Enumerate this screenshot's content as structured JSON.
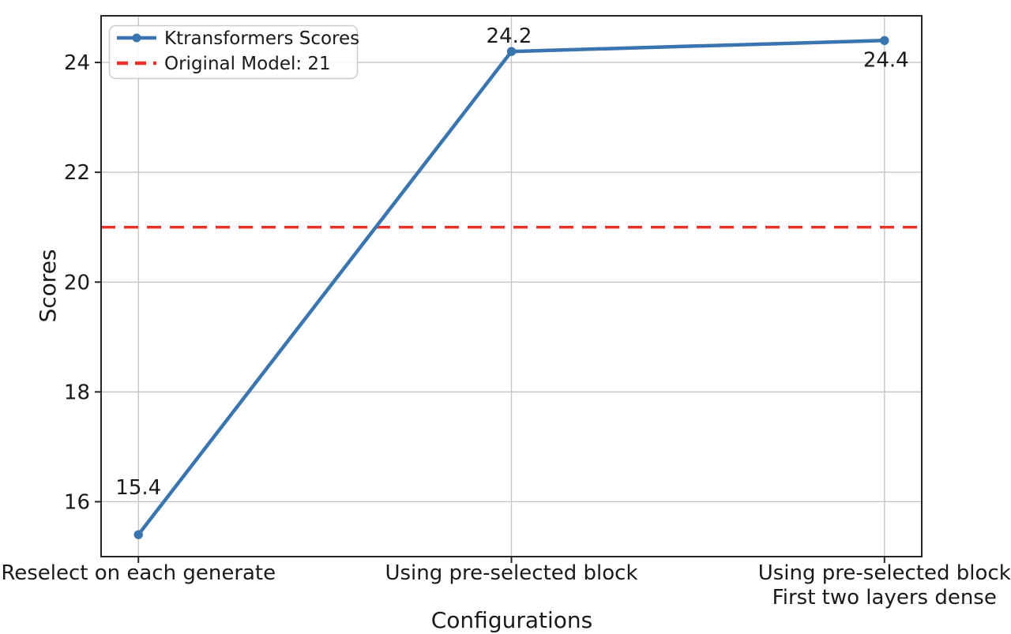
{
  "chart_data": {
    "type": "line",
    "title": "",
    "xlabel": "Configurations",
    "ylabel": "Scores",
    "categories": [
      "Reselect on each generate",
      "Using pre-selected block",
      "Using pre-selected block\nFirst two layers dense"
    ],
    "series": [
      {
        "name": "Ktransformers Scores",
        "color": "#3a75af",
        "marker": "circle",
        "values": [
          15.4,
          24.2,
          24.4
        ],
        "point_labels": [
          "15.4",
          "24.2",
          "24.4"
        ]
      }
    ],
    "reference_line": {
      "label": "Original Model: 21",
      "value": 21,
      "color": "#e8322a",
      "style": "dashed"
    },
    "yticks": [
      16,
      18,
      20,
      22,
      24
    ],
    "ylim": [
      15.0,
      24.85
    ],
    "xlim": [
      -0.1,
      2.1
    ],
    "grid": true,
    "legend_position": "upper-left",
    "colors": {
      "grid": "#c6c6c6",
      "spine": "#262626",
      "text": "#1a1a1a",
      "background": "#ffffff"
    }
  }
}
